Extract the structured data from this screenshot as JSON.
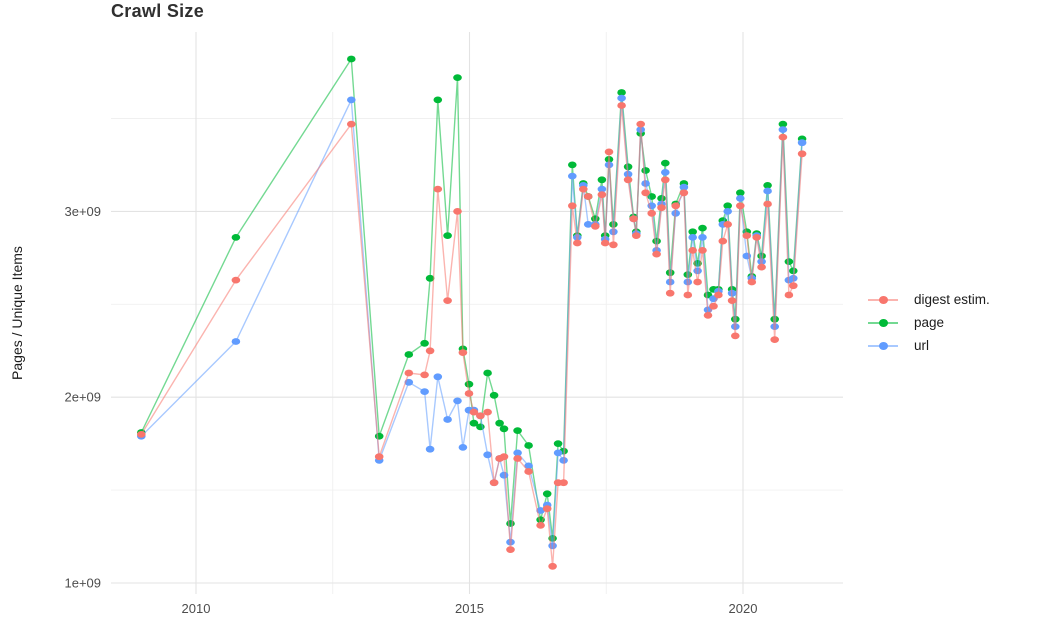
{
  "chart_data": {
    "type": "line",
    "title": "Crawl Size",
    "xlabel": "",
    "ylabel": "Pages / Unique Items",
    "legend_position": "right",
    "grid": true,
    "x_ticks": [
      {
        "value": 2010,
        "label": "2010"
      },
      {
        "value": 2015,
        "label": "2015"
      },
      {
        "value": 2020,
        "label": "2020"
      }
    ],
    "x_minor_ticks": [
      2012.5,
      2017.5
    ],
    "y_ticks": [
      {
        "value": 1,
        "label": "1e+09"
      },
      {
        "value": 2,
        "label": "2e+09"
      },
      {
        "value": 3,
        "label": "3e+09"
      }
    ],
    "y_minor_ticks": [
      1.5,
      2.5,
      3.5
    ],
    "xlim": [
      2008.45,
      2021.85
    ],
    "ylim": [
      0.95,
      3.97
    ],
    "values_unit": "pages (value 1.0 = 1e+09)",
    "x": [
      2009.0,
      2010.73,
      2012.84,
      2013.35,
      2013.89,
      2014.18,
      2014.28,
      2014.42,
      2014.6,
      2014.78,
      2014.88,
      2014.99,
      2015.08,
      2015.2,
      2015.33,
      2015.45,
      2015.55,
      2015.63,
      2015.75,
      2015.88,
      2016.08,
      2016.3,
      2016.42,
      2016.52,
      2016.62,
      2016.72,
      2016.88,
      2016.97,
      2017.08,
      2017.17,
      2017.3,
      2017.42,
      2017.48,
      2017.55,
      2017.63,
      2017.78,
      2017.9,
      2018.0,
      2018.05,
      2018.13,
      2018.22,
      2018.33,
      2018.42,
      2018.51,
      2018.58,
      2018.67,
      2018.77,
      2018.92,
      2018.99,
      2019.08,
      2019.17,
      2019.26,
      2019.36,
      2019.46,
      2019.55,
      2019.63,
      2019.72,
      2019.8,
      2019.86,
      2019.95,
      2020.07,
      2020.16,
      2020.25,
      2020.34,
      2020.45,
      2020.58,
      2020.73,
      2020.84,
      2020.92,
      2021.08
    ],
    "series": [
      {
        "name": "digest estim.",
        "color": "#F8766D",
        "values": [
          1.8,
          2.63,
          3.47,
          1.68,
          2.13,
          2.12,
          2.25,
          3.12,
          2.52,
          3.0,
          2.24,
          2.02,
          1.92,
          1.9,
          1.92,
          1.54,
          1.67,
          1.68,
          1.18,
          1.67,
          1.6,
          1.31,
          1.4,
          1.09,
          1.54,
          1.54,
          3.03,
          2.83,
          3.12,
          3.08,
          2.92,
          3.09,
          2.83,
          3.32,
          2.82,
          3.57,
          3.17,
          2.96,
          2.87,
          3.47,
          3.1,
          2.99,
          2.77,
          3.02,
          3.17,
          2.56,
          3.03,
          3.1,
          2.55,
          2.79,
          2.62,
          2.79,
          2.44,
          2.49,
          2.55,
          2.84,
          2.93,
          2.52,
          2.33,
          3.03,
          2.87,
          2.62,
          2.86,
          2.7,
          3.04,
          2.31,
          3.4,
          2.55,
          2.6,
          3.31
        ]
      },
      {
        "name": "page",
        "color": "#00BA38",
        "values": [
          1.81,
          2.86,
          3.82,
          1.79,
          2.23,
          2.29,
          2.64,
          3.6,
          2.87,
          3.72,
          2.26,
          2.07,
          1.86,
          1.84,
          2.13,
          2.01,
          1.86,
          1.83,
          1.32,
          1.82,
          1.74,
          1.34,
          1.48,
          1.24,
          1.75,
          1.71,
          3.25,
          2.87,
          3.15,
          3.08,
          2.96,
          3.17,
          2.87,
          3.28,
          2.93,
          3.64,
          3.24,
          2.97,
          2.89,
          3.42,
          3.22,
          3.08,
          2.84,
          3.07,
          3.26,
          2.67,
          3.04,
          3.15,
          2.66,
          2.89,
          2.72,
          2.91,
          2.55,
          2.58,
          2.58,
          2.95,
          3.03,
          2.58,
          2.42,
          3.1,
          2.89,
          2.65,
          2.88,
          2.76,
          3.14,
          2.42,
          3.47,
          2.73,
          2.68,
          3.39
        ]
      },
      {
        "name": "url",
        "color": "#619CFF",
        "values": [
          1.79,
          2.3,
          3.6,
          1.66,
          2.08,
          2.03,
          1.72,
          2.11,
          1.88,
          1.98,
          1.73,
          1.93,
          1.93,
          1.9,
          1.69,
          1.54,
          1.67,
          1.58,
          1.22,
          1.7,
          1.63,
          1.39,
          1.42,
          1.2,
          1.7,
          1.66,
          3.19,
          2.86,
          3.14,
          2.93,
          2.93,
          3.12,
          2.85,
          3.25,
          2.89,
          3.61,
          3.2,
          2.96,
          2.88,
          3.44,
          3.15,
          3.03,
          2.79,
          3.04,
          3.21,
          2.62,
          2.99,
          3.13,
          2.62,
          2.86,
          2.68,
          2.86,
          2.47,
          2.53,
          2.57,
          2.93,
          3.0,
          2.56,
          2.38,
          3.07,
          2.76,
          2.64,
          2.87,
          2.73,
          3.11,
          2.38,
          3.44,
          2.63,
          2.64,
          3.37
        ]
      }
    ],
    "style": {
      "grid_major_color": "#E3E3E3",
      "grid_minor_color": "#F0F0F0",
      "axis_text_color": "#4d4d4d",
      "line_opacity": 0.55,
      "background": "#ffffff"
    }
  }
}
